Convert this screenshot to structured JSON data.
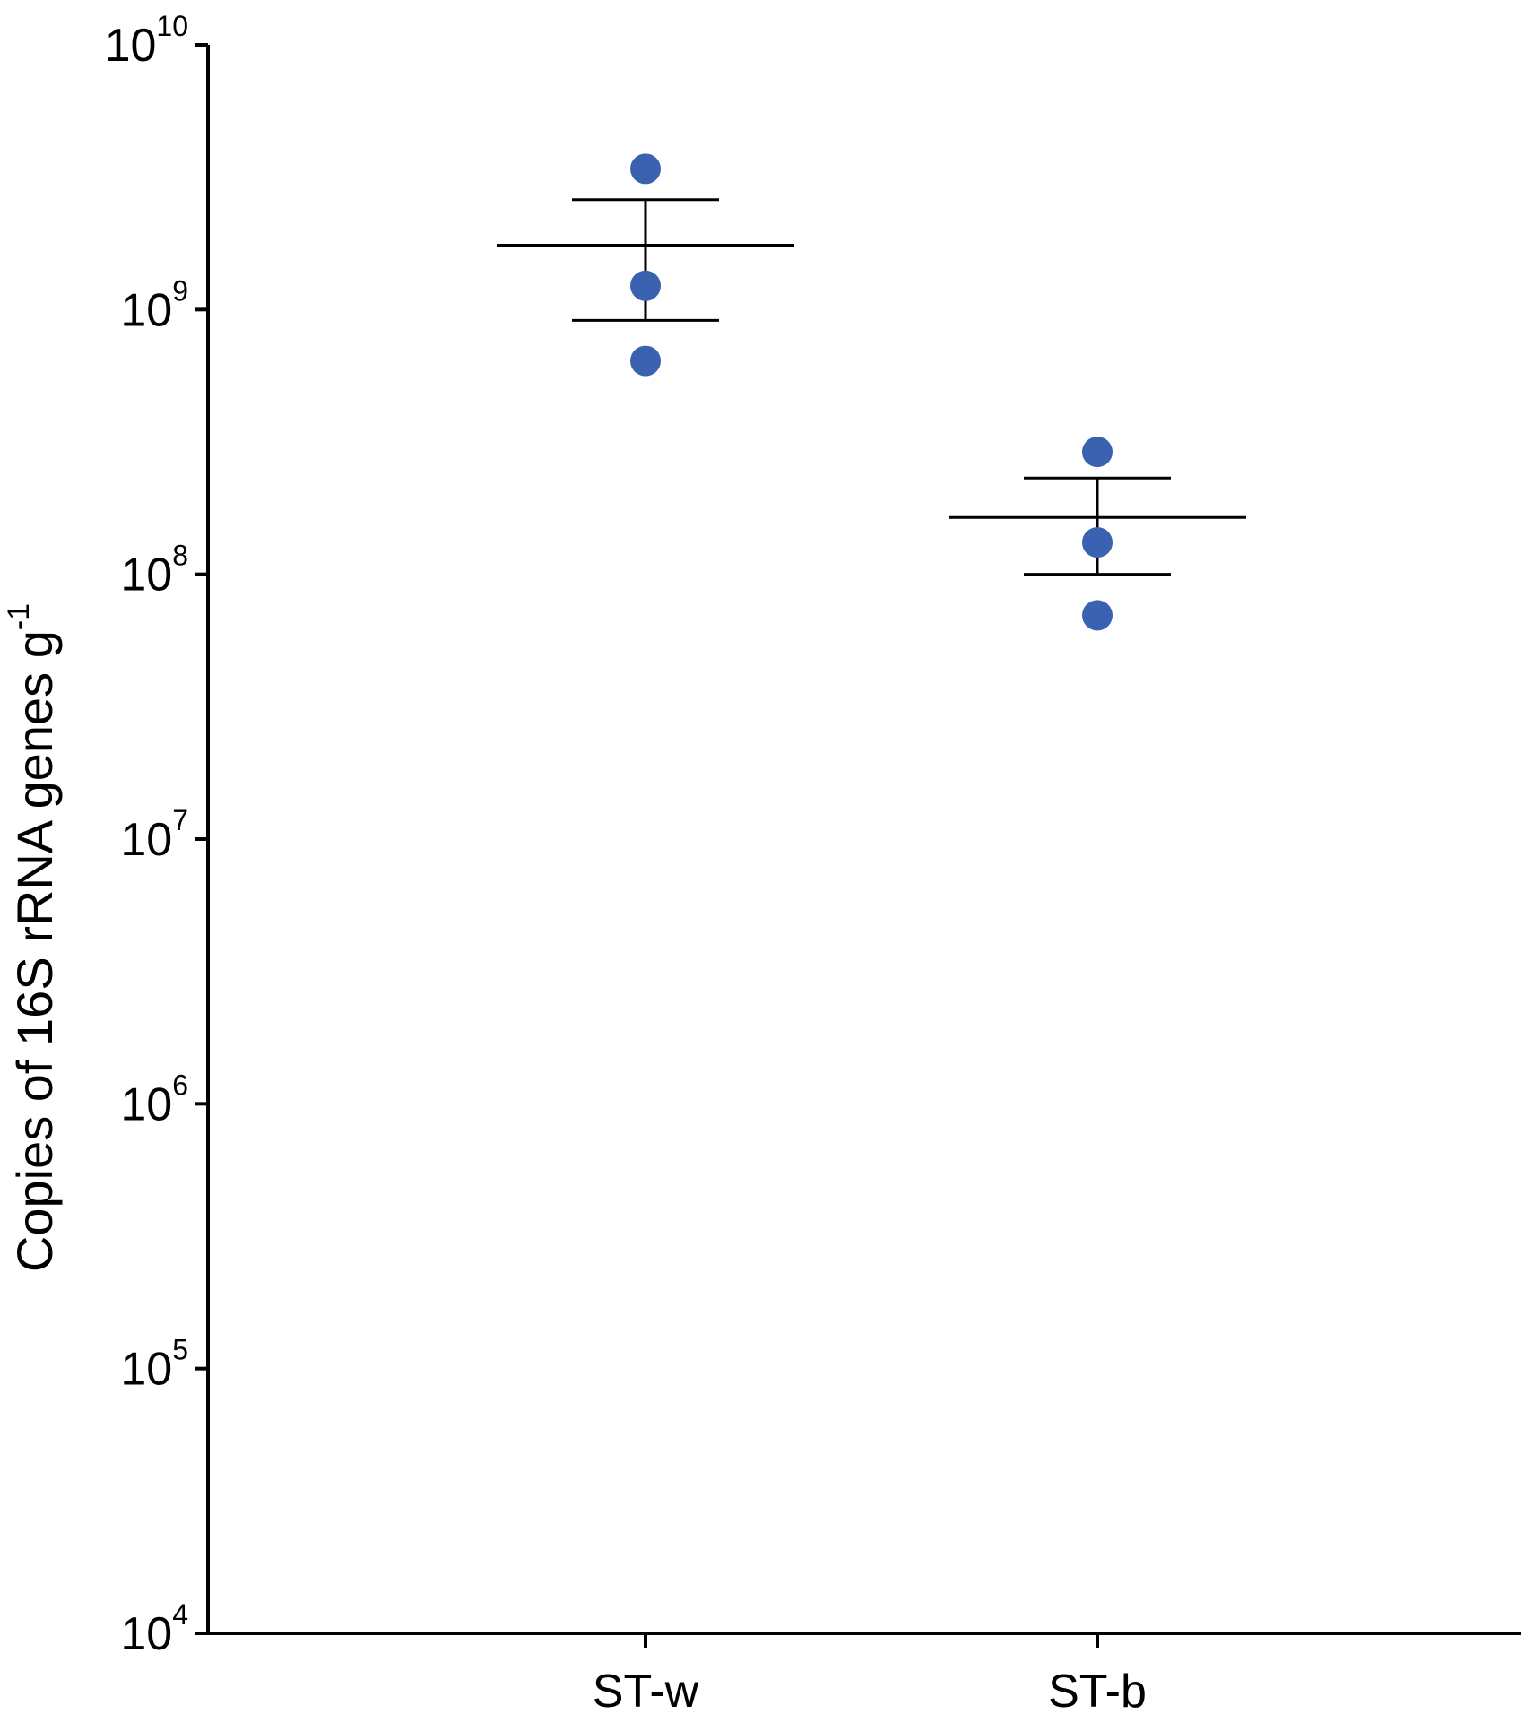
{
  "chart_data": {
    "type": "scatter",
    "ylabel": {
      "text": "Copies of 16S rRNA genes g",
      "superscript": "-1"
    },
    "xlabel": "",
    "yscale": "log",
    "ylim": [
      10000,
      10000000000
    ],
    "y_ticks": [
      {
        "base": "10",
        "exp": "4",
        "value": 10000
      },
      {
        "base": "10",
        "exp": "5",
        "value": 100000
      },
      {
        "base": "10",
        "exp": "6",
        "value": 1000000
      },
      {
        "base": "10",
        "exp": "7",
        "value": 10000000
      },
      {
        "base": "10",
        "exp": "8",
        "value": 100000000
      },
      {
        "base": "10",
        "exp": "9",
        "value": 1000000000
      },
      {
        "base": "10",
        "exp": "10",
        "value": 10000000000
      }
    ],
    "categories": [
      "ST-w",
      "ST-b"
    ],
    "groups": [
      {
        "category": "ST-w",
        "points": [
          3400000000,
          1230000000,
          640000000
        ],
        "mean": 1750000000,
        "error_low": 910000000,
        "error_high": 2600000000
      },
      {
        "category": "ST-b",
        "points": [
          290000000,
          132000000,
          70000000
        ],
        "mean": 164000000,
        "error_low": 100000000,
        "error_high": 231000000
      }
    ],
    "point_color": "#3a62b0",
    "line_color": "#000000",
    "grid": false
  }
}
